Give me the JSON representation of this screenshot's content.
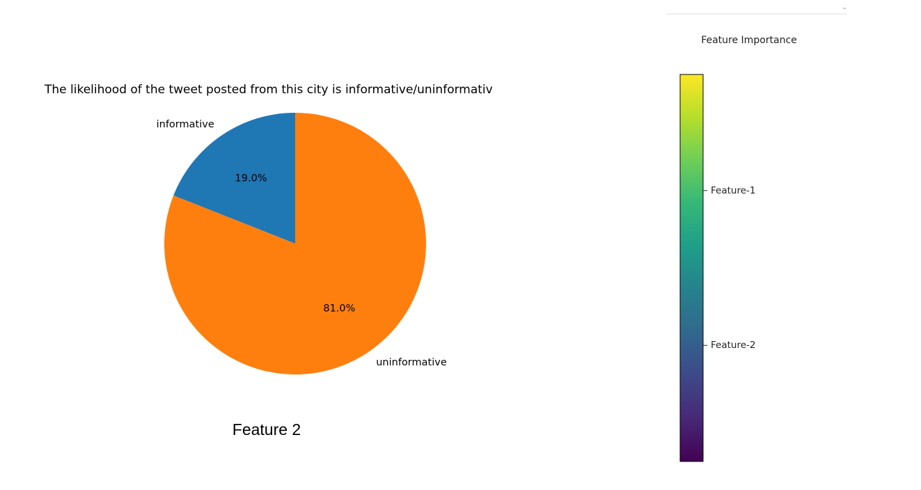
{
  "chart_data": [
    {
      "type": "pie",
      "title": "The likelihood of the tweet posted from this city is informative/uninformativ",
      "categories": [
        "informative",
        "uninformative"
      ],
      "values": [
        19.0,
        81.0
      ],
      "value_labels": [
        "19.0%",
        "81.0%"
      ],
      "colors": [
        "#1f77b4",
        "#ff7f0e"
      ],
      "start_angle_deg": 90,
      "direction": "counterclockwise",
      "caption": "Feature 2"
    },
    {
      "type": "colorbar",
      "title": "Feature Importance",
      "colormap": "viridis",
      "colormap_stops": [
        "#440154",
        "#482878",
        "#3e4989",
        "#31688e",
        "#26828e",
        "#1f9e89",
        "#35b779",
        "#6ece58",
        "#b5de2b",
        "#fde725"
      ],
      "ticks": [
        {
          "label": "Feature-1",
          "position": 0.7
        },
        {
          "label": "Feature-2",
          "position": 0.3
        }
      ]
    }
  ]
}
